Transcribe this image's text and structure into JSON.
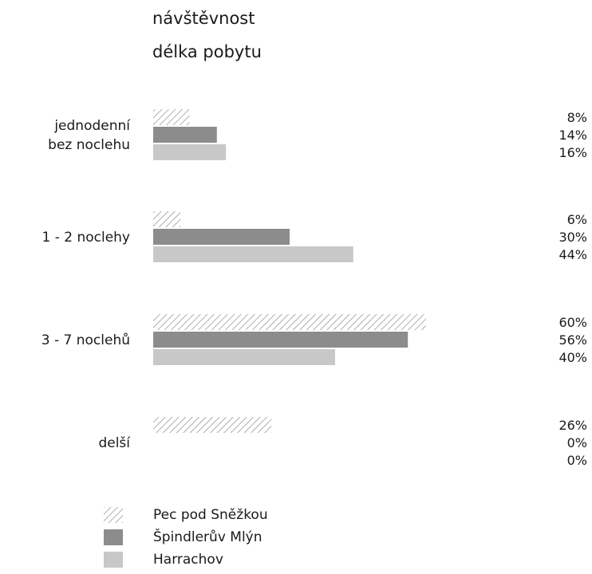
{
  "titles": [
    "návštěvnost",
    "délka pobytu"
  ],
  "colors": {
    "pec": "#9a9a9a",
    "spindl": "#8c8c8c",
    "harrachov": "#c8c8c8"
  },
  "chart_data": {
    "type": "bar",
    "orientation": "horizontal",
    "categories": [
      [
        "jednodenní",
        "bez noclehu"
      ],
      [
        "1 - 2 noclehy"
      ],
      [
        "3 - 7 noclehů"
      ],
      [
        "delší"
      ]
    ],
    "series": [
      {
        "name": "Pec pod Sněžkou",
        "values": [
          8,
          6,
          60,
          26
        ],
        "pattern": "hatched"
      },
      {
        "name": "Špindlerův Mlýn",
        "values": [
          14,
          30,
          56,
          0
        ],
        "pattern": "solid-dark"
      },
      {
        "name": "Harrachov",
        "values": [
          16,
          44,
          40,
          0
        ],
        "pattern": "solid-light"
      }
    ],
    "value_suffix": "%",
    "xlim": [
      0,
      100
    ],
    "grid": false,
    "legend_position": "bottom-left"
  }
}
